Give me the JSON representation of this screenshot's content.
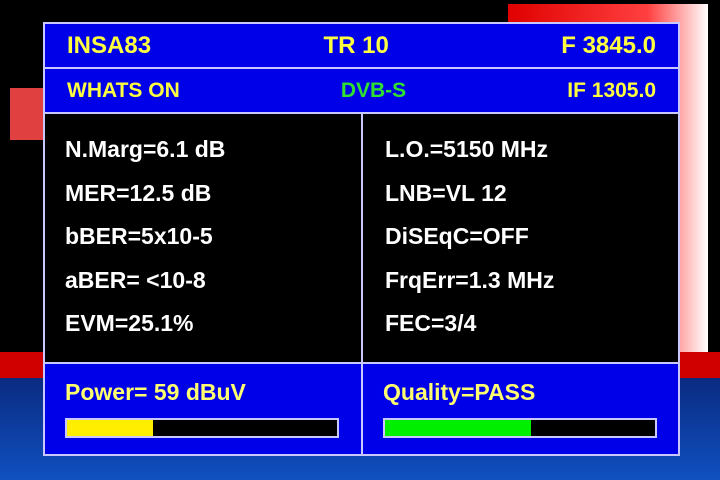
{
  "header": {
    "satellite": "INSA83",
    "transponder": "TR 10",
    "frequency": "F 3845.0"
  },
  "subheader": {
    "channel": "WHATS ON",
    "standard": "DVB-S",
    "if_freq": "IF 1305.0"
  },
  "left_params": [
    "N.Marg=6.1 dB",
    "MER=12.5 dB",
    "bBER=5x10-5",
    "aBER= <10-8",
    "EVM=25.1%"
  ],
  "right_params": [
    "L.O.=5150 MHz",
    "LNB=VL 12",
    "DiSEqC=OFF",
    "FrqErr=1.3 MHz",
    "FEC=3/4"
  ],
  "power": {
    "label": "Power= 59 dBuV",
    "level_percent": 32,
    "color": "#ffee00"
  },
  "quality": {
    "label": "Quality=PASS",
    "level_percent": 54,
    "color": "#00ee00"
  }
}
